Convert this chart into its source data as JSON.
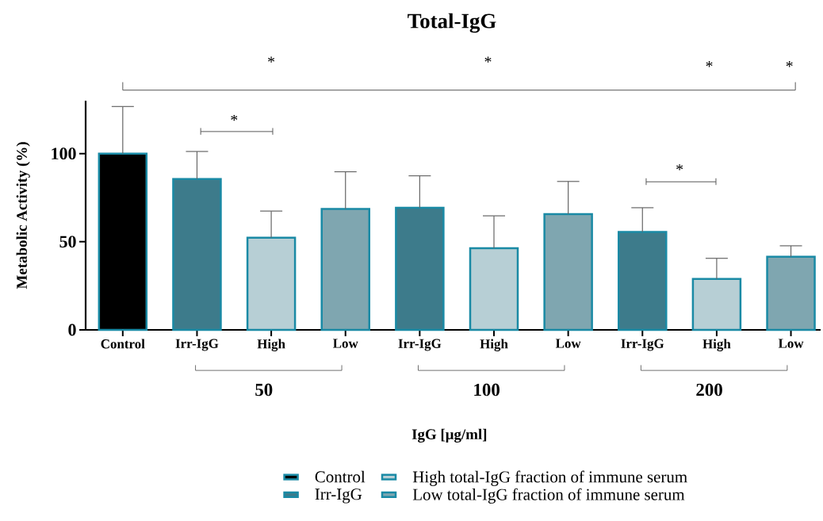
{
  "chart_data": {
    "type": "bar",
    "title": "Total-IgG",
    "ylabel": "Metabolic Activity (%)",
    "categories": [
      "Control",
      "Irr-IgG",
      "High",
      "Low",
      "Irr-IgG",
      "High",
      "Low",
      "Irr-IgG",
      "High",
      "Low"
    ],
    "series": [
      {
        "name": "Control",
        "color": "#000000",
        "values": [
          100,
          null,
          null,
          null,
          null,
          null,
          null,
          null,
          null,
          null
        ],
        "errors": [
          [
            100,
            126.7
          ],
          null,
          null,
          null,
          null,
          null,
          null,
          null,
          null,
          null
        ]
      },
      {
        "name": "Irr-IgG",
        "color": "#3d7b8b",
        "values": [
          null,
          85.6,
          null,
          null,
          69.3,
          null,
          null,
          55.5,
          null,
          null
        ],
        "errors": [
          null,
          [
            85.6,
            101.2
          ],
          null,
          null,
          [
            69.3,
            87.4
          ],
          null,
          null,
          [
            55.5,
            69.3
          ],
          null,
          null
        ]
      },
      {
        "name": "High total-IgG fraction of immune serum",
        "color": "#b7cfd5",
        "values": [
          null,
          null,
          52.3,
          null,
          null,
          46.3,
          null,
          null,
          28.9,
          null
        ],
        "errors": [
          null,
          null,
          [
            52.3,
            67.4
          ],
          null,
          null,
          [
            46.3,
            64.7
          ],
          null,
          null,
          [
            28.9,
            40.6
          ],
          null
        ]
      },
      {
        "name": "Low total-IgG fraction of immune serum",
        "color": "#7fa6b0",
        "values": [
          null,
          null,
          null,
          68.6,
          null,
          null,
          65.7,
          null,
          null,
          41.5
        ],
        "errors": [
          null,
          null,
          null,
          [
            68.6,
            89.7
          ],
          null,
          null,
          [
            65.7,
            84.2
          ],
          null,
          null,
          [
            41.5,
            47.7
          ]
        ]
      }
    ],
    "ylim": [
      0,
      130
    ],
    "yticks": [
      0,
      50,
      100
    ],
    "legend": "bottom",
    "annotations": [
      "50",
      "100",
      "200",
      "*",
      "*",
      "*",
      "*",
      "*",
      "*",
      "IgG [μg/ml]"
    ]
  }
}
